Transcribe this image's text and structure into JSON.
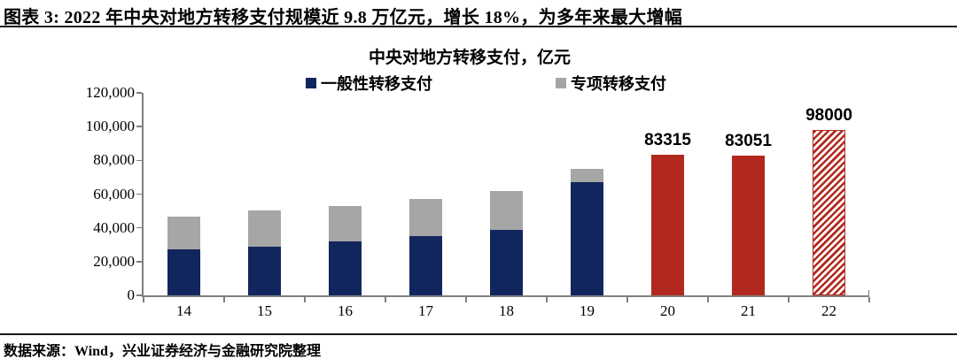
{
  "figure": {
    "title": "图表 3:  2022 年中央对地方转移支付规模近 9.8 万亿元，增长 18%，为多年来最大增幅",
    "source": "数据来源：Wind，兴业证券经济与金融研究院整理"
  },
  "chart_data": {
    "type": "bar",
    "stacked": true,
    "title": "中央对地方转移支付，亿元",
    "categories": [
      "14",
      "15",
      "16",
      "17",
      "18",
      "19",
      "20",
      "21",
      "22"
    ],
    "stacked_series": [
      {
        "name": "一般性转移支付",
        "color": "#12265E",
        "values": [
          27500,
          28700,
          32000,
          35300,
          39000,
          67000,
          null,
          null,
          null
        ]
      },
      {
        "name": "专项转移支付",
        "color": "#A6A6A6",
        "values": [
          19200,
          21500,
          20700,
          21900,
          23000,
          8000,
          null,
          null,
          null
        ]
      }
    ],
    "total_bars": [
      {
        "category": "20",
        "value": 83315,
        "label": "83315",
        "style": "solid"
      },
      {
        "category": "21",
        "value": 83051,
        "label": "83051",
        "style": "solid"
      },
      {
        "category": "22",
        "value": 98000,
        "label": "98000",
        "style": "hatched"
      }
    ],
    "total_bar_color": "#B2281E",
    "axis_color": "#7f7f7f",
    "ylim": [
      0,
      120000
    ],
    "yticks": [
      {
        "value": 0,
        "label": "0"
      },
      {
        "value": 20000,
        "label": "20,000"
      },
      {
        "value": 40000,
        "label": "40,000"
      },
      {
        "value": 60000,
        "label": "60,000"
      },
      {
        "value": 80000,
        "label": "80,000"
      },
      {
        "value": 100000,
        "label": "100,000"
      },
      {
        "value": 120000,
        "label": "120,000"
      }
    ],
    "legend_position": "top",
    "grid": false
  }
}
